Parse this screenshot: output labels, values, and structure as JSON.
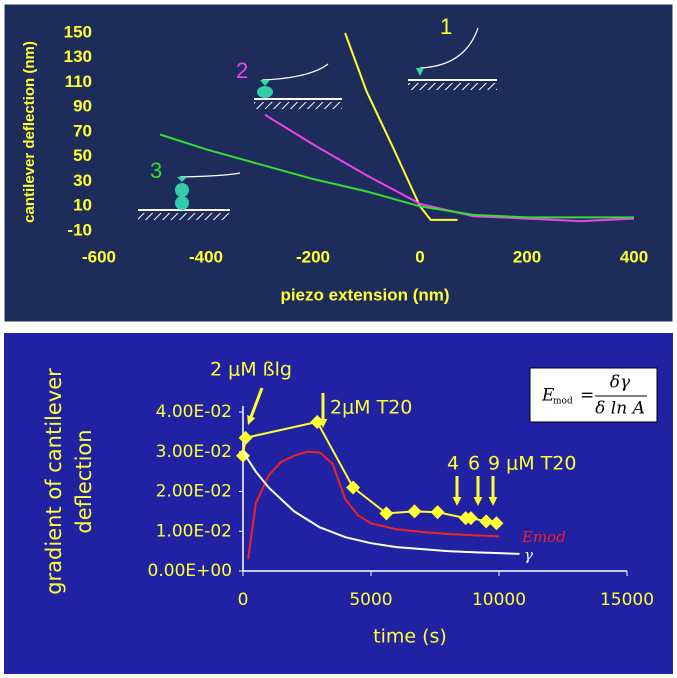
{
  "chart_data": [
    {
      "type": "line",
      "xlabel": "piezo extension (nm)",
      "ylabel": "cantilever deflection (nm)",
      "xlim": [
        -600,
        400
      ],
      "xticks": [
        -600,
        -400,
        -200,
        0,
        200,
        400
      ],
      "ylim": [
        -10,
        150
      ],
      "yticks": [
        -10,
        10,
        30,
        50,
        70,
        90,
        110,
        130,
        150
      ],
      "series": [
        {
          "name": "1",
          "color": "#ffff33",
          "x": [
            -140,
            -100,
            -50,
            0,
            20,
            70
          ],
          "values": [
            150,
            103,
            57,
            10,
            -1,
            -1
          ]
        },
        {
          "name": "2",
          "color": "#ee44ee",
          "x": [
            -290,
            -200,
            -100,
            0,
            100,
            200,
            300,
            400
          ],
          "values": [
            84,
            60,
            35,
            12,
            2,
            0,
            -2,
            0
          ]
        },
        {
          "name": "3",
          "color": "#33dd33",
          "x": [
            -486,
            -400,
            -300,
            -200,
            -100,
            0,
            100,
            200,
            300,
            400
          ],
          "values": [
            68,
            56,
            44,
            32,
            22,
            10,
            3,
            1,
            1,
            1
          ]
        }
      ]
    },
    {
      "type": "line",
      "xlabel": "time (s)",
      "ylabel": [
        "gradient of cantilever",
        "deflection"
      ],
      "xlim": [
        0,
        15000
      ],
      "xticks": [
        0,
        5000,
        10000,
        15000
      ],
      "ylim": [
        0,
        0.04
      ],
      "yticks": [
        {
          "value": 0,
          "label": "0.00E+00"
        },
        {
          "value": 0.01,
          "label": "1.00E-02"
        },
        {
          "value": 0.02,
          "label": "2.00E-02"
        },
        {
          "value": 0.03,
          "label": "3.00E-02"
        },
        {
          "value": 0.04,
          "label": "4.00E-02"
        }
      ],
      "annotations": [
        "2 μM ßlg",
        "2μM T20",
        "4",
        "6",
        "9 μM T20"
      ],
      "formula": {
        "lhs": "E",
        "lhs_sub": "mod",
        "numerator": "δγ",
        "denominator": "δ ln A"
      },
      "series": [
        {
          "color": "#ffff33",
          "markers": true,
          "x": [
            0,
            100,
            2900,
            4300,
            5600,
            6700,
            7600,
            8700,
            8900,
            9500,
            9900
          ],
          "values": [
            0.029,
            0.0335,
            0.0375,
            0.021,
            0.0145,
            0.015,
            0.0148,
            0.0133,
            0.0133,
            0.0125,
            0.012
          ]
        },
        {
          "name": "Emod",
          "color": "#ee2222",
          "x": [
            200,
            500,
            1000,
            1500,
            2000,
            2500,
            3000,
            3500,
            4000,
            4500,
            5000,
            6000,
            7000,
            8000,
            9000,
            10000
          ],
          "values": [
            0.003,
            0.017,
            0.024,
            0.0275,
            0.029,
            0.03,
            0.0298,
            0.027,
            0.018,
            0.014,
            0.012,
            0.0105,
            0.0098,
            0.0093,
            0.009,
            0.0087
          ]
        },
        {
          "name": "γ",
          "color": "#ffffff",
          "x": [
            0,
            500,
            1000,
            2000,
            3000,
            4000,
            5000,
            6000,
            7000,
            8000,
            9000,
            10000,
            10800
          ],
          "values": [
            0.03,
            0.025,
            0.021,
            0.015,
            0.011,
            0.0085,
            0.007,
            0.006,
            0.0055,
            0.005,
            0.0047,
            0.0045,
            0.0043
          ]
        }
      ]
    }
  ]
}
